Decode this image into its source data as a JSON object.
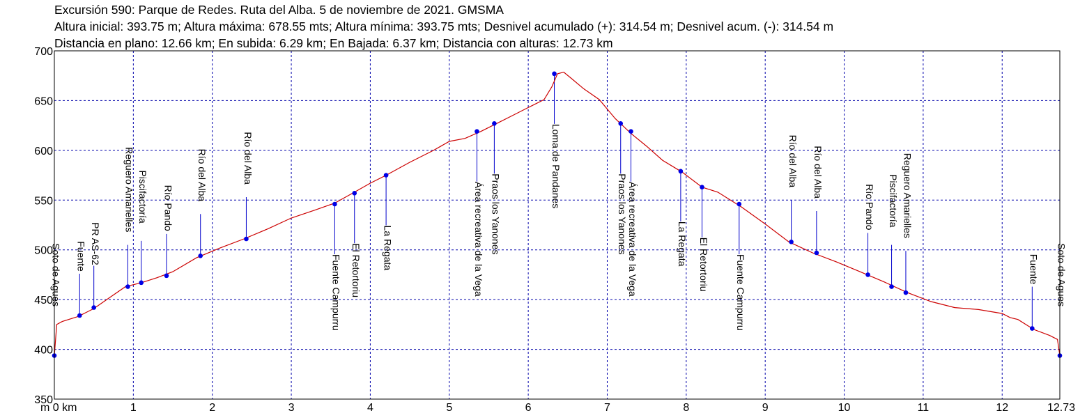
{
  "header": {
    "line1": "Excursión 590: Parque de Redes. Ruta del Alba. 5 de noviembre de 2021. GMSMA",
    "line2": "Altura inicial: 393.75 m; Altura máxima: 678.55 mts; Altura mínima: 393.75 mts; Desnivel acumulado (+): 314.54 m; Desnivel acum. (-): 314.54 m",
    "line3": "Distancia en plano: 12.66 km; En subida: 6.29 km; En Bajada: 6.37 km; Distancia con alturas: 12.73 km"
  },
  "chart_data": {
    "type": "line",
    "xlim": [
      0,
      12.73
    ],
    "ylim": [
      350,
      700
    ],
    "x_unit_label": "m 0 km",
    "x_ticks": [
      "1",
      "2",
      "3",
      "4",
      "5",
      "6",
      "7",
      "8",
      "9",
      "10",
      "11",
      "12",
      "12.73"
    ],
    "y_ticks": [
      "700",
      "650",
      "600",
      "550",
      "500",
      "450",
      "400",
      "350"
    ],
    "grid": true,
    "line_color": "#cc0000",
    "marker_color": "#0000e6",
    "profile": {
      "x": [
        0,
        0.03,
        0.1,
        0.3,
        0.5,
        0.7,
        0.9,
        1.1,
        1.3,
        1.5,
        1.8,
        2.1,
        2.4,
        2.7,
        3.0,
        3.3,
        3.55,
        3.8,
        4.0,
        4.2,
        4.5,
        4.8,
        5.0,
        5.2,
        5.4,
        5.6,
        5.8,
        6.0,
        6.2,
        6.3,
        6.37,
        6.45,
        6.55,
        6.7,
        6.9,
        7.1,
        7.3,
        7.5,
        7.7,
        7.95,
        8.2,
        8.4,
        8.7,
        9.0,
        9.3,
        9.6,
        9.9,
        10.2,
        10.5,
        10.8,
        11.1,
        11.4,
        11.7,
        12.0,
        12.1,
        12.2,
        12.4,
        12.6,
        12.7,
        12.73
      ],
      "y": [
        393.75,
        425,
        428,
        433,
        441,
        452,
        463,
        467,
        472,
        478,
        492,
        502,
        511,
        521,
        532,
        540,
        547,
        558,
        567,
        575,
        588,
        600,
        609,
        612,
        619,
        627,
        635,
        643,
        651,
        664,
        677,
        678.55,
        672,
        662,
        651,
        632,
        617,
        604,
        590,
        578,
        563,
        558,
        543,
        526,
        508,
        497,
        488,
        478,
        468,
        457,
        448,
        442,
        440,
        436,
        432,
        430,
        420,
        414,
        410,
        393.75
      ]
    },
    "waypoints": [
      {
        "name": "Soto de Agues",
        "x": 0.0,
        "y": 393.75
      },
      {
        "name": "Fuente",
        "x": 0.32,
        "y": 434
      },
      {
        "name": "PR AS-62",
        "x": 0.5,
        "y": 442
      },
      {
        "name": "Reguero Amarielles",
        "x": 0.93,
        "y": 463
      },
      {
        "name": "Piscifactoría",
        "x": 1.1,
        "y": 467
      },
      {
        "name": "Río Pando",
        "x": 1.42,
        "y": 474
      },
      {
        "name": "Río del Alba",
        "x": 1.85,
        "y": 494
      },
      {
        "name": "Río del Alba",
        "x": 2.43,
        "y": 511
      },
      {
        "name": "Fuente Campurru",
        "x": 3.55,
        "y": 546
      },
      {
        "name": "El Retortoriu",
        "x": 3.8,
        "y": 557
      },
      {
        "name": "La Regata",
        "x": 4.2,
        "y": 575
      },
      {
        "name": "Área recreativa de la Vega",
        "x": 5.35,
        "y": 619
      },
      {
        "name": "Praos los Yanones",
        "x": 5.57,
        "y": 627
      },
      {
        "name": "Loma de Pandanes",
        "x": 6.33,
        "y": 677
      },
      {
        "name": "Praos los Yanones",
        "x": 7.17,
        "y": 627
      },
      {
        "name": "Área recreativa de la Vega",
        "x": 7.3,
        "y": 619
      },
      {
        "name": "La Regata",
        "x": 7.93,
        "y": 579
      },
      {
        "name": "El Retortoriu",
        "x": 8.2,
        "y": 563
      },
      {
        "name": "Fuente Campurru",
        "x": 8.67,
        "y": 546
      },
      {
        "name": "Río del Alba",
        "x": 9.33,
        "y": 508
      },
      {
        "name": "Río del Alba",
        "x": 9.65,
        "y": 497
      },
      {
        "name": "Río Pando",
        "x": 10.3,
        "y": 475
      },
      {
        "name": "Piscifactoría",
        "x": 10.6,
        "y": 463
      },
      {
        "name": "Reguero Amarielles",
        "x": 10.78,
        "y": 457
      },
      {
        "name": "Fuente",
        "x": 12.38,
        "y": 421
      },
      {
        "name": "Soto de Agues",
        "x": 12.73,
        "y": 393.75
      }
    ]
  }
}
